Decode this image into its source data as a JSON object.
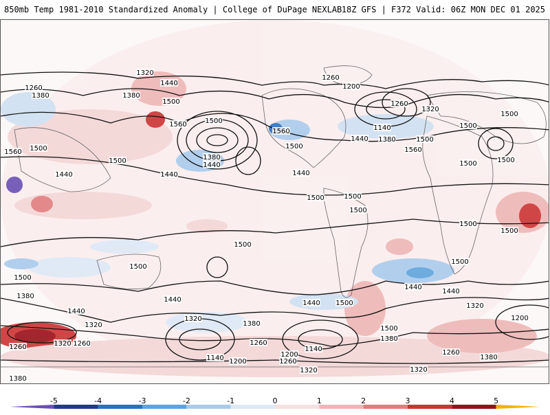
{
  "header": {
    "left_title": "850mb Temp 1981-2010 Standardized Anomaly | College of DuPage NEXLAB",
    "right_title": "18Z GFS | F372 Valid: 06Z MON DEC 01 2025"
  },
  "colorbar": {
    "ticks": [
      "-5",
      "-4",
      "-3",
      "-2",
      "-1",
      "0",
      "1",
      "2",
      "3",
      "4",
      "5"
    ],
    "colors": [
      "#6a4fb3",
      "#1f3a8a",
      "#2f6fc0",
      "#5fa3dd",
      "#a9cbec",
      "#dde9f6",
      "#f6e0e0",
      "#eeb6b6",
      "#e27d7d",
      "#cc3333",
      "#9a0f18",
      "#f0b400"
    ]
  },
  "contour_labels": [
    {
      "text": "1320"
    },
    {
      "text": "1440"
    },
    {
      "text": "1260"
    },
    {
      "text": "1380"
    },
    {
      "text": "1380"
    },
    {
      "text": "1500"
    },
    {
      "text": "1560"
    },
    {
      "text": "1500"
    },
    {
      "text": "1560"
    },
    {
      "text": "1500"
    },
    {
      "text": "1380"
    },
    {
      "text": "1440"
    },
    {
      "text": "1500"
    },
    {
      "text": "1440"
    },
    {
      "text": "1440"
    },
    {
      "text": "1560"
    },
    {
      "text": "1500"
    },
    {
      "text": "1440"
    },
    {
      "text": "1500"
    },
    {
      "text": "1500"
    },
    {
      "text": "1260"
    },
    {
      "text": "1200"
    },
    {
      "text": "1260"
    },
    {
      "text": "1320"
    },
    {
      "text": "1140"
    },
    {
      "text": "1440"
    },
    {
      "text": "1380"
    },
    {
      "text": "1500"
    },
    {
      "text": "1560"
    },
    {
      "text": "1500"
    },
    {
      "text": "1500"
    },
    {
      "text": "1500"
    },
    {
      "text": "1500"
    },
    {
      "text": "1500"
    },
    {
      "text": "1500"
    },
    {
      "text": "1500"
    },
    {
      "text": "1500"
    },
    {
      "text": "1500"
    },
    {
      "text": "1380"
    },
    {
      "text": "1440"
    },
    {
      "text": "1440"
    },
    {
      "text": "1320"
    },
    {
      "text": "1320"
    },
    {
      "text": "1380"
    },
    {
      "text": "1260"
    },
    {
      "text": "1260"
    },
    {
      "text": "1320"
    },
    {
      "text": "1260"
    },
    {
      "text": "1140"
    },
    {
      "text": "1200"
    },
    {
      "text": "1440"
    },
    {
      "text": "1500"
    },
    {
      "text": "1140"
    },
    {
      "text": "1200"
    },
    {
      "text": "1260"
    },
    {
      "text": "1320"
    },
    {
      "text": "1500"
    },
    {
      "text": "1380"
    },
    {
      "text": "1440"
    },
    {
      "text": "1440"
    },
    {
      "text": "1320"
    },
    {
      "text": "1200"
    },
    {
      "text": "1260"
    },
    {
      "text": "1380"
    },
    {
      "text": "1320"
    },
    {
      "text": "1380"
    },
    {
      "text": "1500"
    },
    {
      "text": "1500"
    }
  ]
}
